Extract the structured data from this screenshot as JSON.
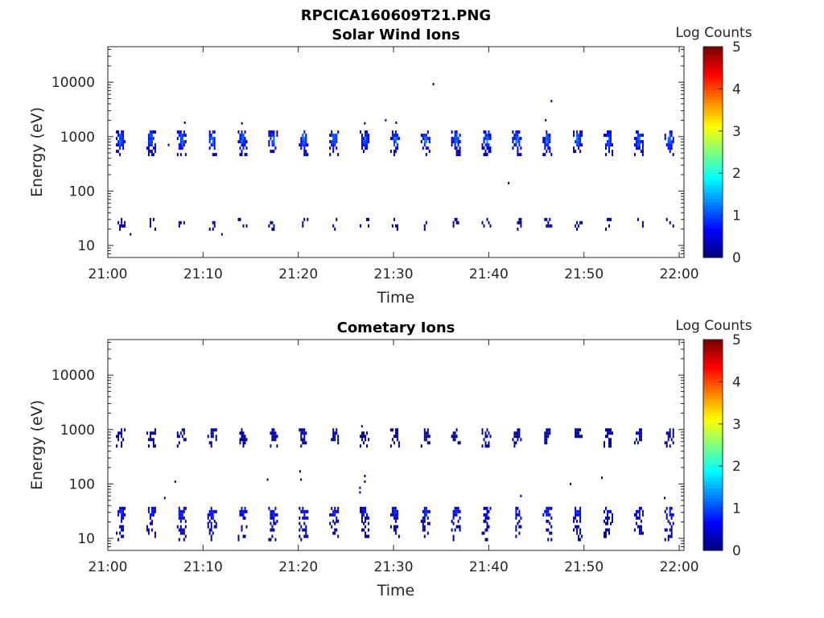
{
  "figure_title": "RPCICA160609T21.PNG",
  "chart_data": [
    {
      "type": "heatmap",
      "title": "Solar Wind Ions",
      "xlabel": "Time",
      "ylabel": "Energy (eV)",
      "x_ticks": [
        "21:00",
        "21:10",
        "21:20",
        "21:30",
        "21:40",
        "21:50",
        "22:00"
      ],
      "x_tick_minutes": [
        0,
        10,
        20,
        30,
        40,
        50,
        60
      ],
      "xlim_minutes": [
        0,
        60.5
      ],
      "y_scale": "log",
      "y_ticks": [
        "10",
        "100",
        "1000",
        "10000"
      ],
      "y_tick_values": [
        10,
        100,
        1000,
        10000
      ],
      "ylim": [
        6,
        45000
      ],
      "colorbar": {
        "label": "Log Counts",
        "ticks": [
          "0",
          "1",
          "2",
          "3",
          "4",
          "5"
        ],
        "range": [
          0,
          5
        ],
        "colormap": "jet"
      },
      "sweep_period_minutes": 3.2,
      "first_sweep_minute": 1.3,
      "sweeps": 19,
      "bands": [
        {
          "name": "main",
          "emin": 480,
          "emax": 1300,
          "peak_log_counts": 1.4,
          "fill": 0.82
        },
        {
          "name": "low",
          "emin": 19,
          "emax": 32,
          "peak_log_counts": 0.3,
          "fill": 0.35
        }
      ],
      "isolated_points": [
        {
          "t": 34.1,
          "e": 9200
        },
        {
          "t": 46.5,
          "e": 4500
        },
        {
          "t": 42.0,
          "e": 140
        },
        {
          "t": 29.1,
          "e": 2000
        },
        {
          "t": 30.2,
          "e": 1800
        },
        {
          "t": 26.9,
          "e": 1750
        },
        {
          "t": 8.0,
          "e": 1800
        },
        {
          "t": 14.0,
          "e": 1750
        },
        {
          "t": 6.3,
          "e": 700
        },
        {
          "t": 2.3,
          "e": 16
        },
        {
          "t": 11.9,
          "e": 16
        },
        {
          "t": 45.9,
          "e": 2000
        }
      ]
    },
    {
      "type": "heatmap",
      "title": "Cometary Ions",
      "xlabel": "Time",
      "ylabel": "Energy (eV)",
      "x_ticks": [
        "21:00",
        "21:10",
        "21:20",
        "21:30",
        "21:40",
        "21:50",
        "22:00"
      ],
      "x_tick_minutes": [
        0,
        10,
        20,
        30,
        40,
        50,
        60
      ],
      "xlim_minutes": [
        0,
        60.5
      ],
      "y_scale": "log",
      "y_ticks": [
        "10",
        "100",
        "1000",
        "10000"
      ],
      "y_tick_values": [
        10,
        100,
        1000,
        10000
      ],
      "ylim": [
        6,
        45000
      ],
      "colorbar": {
        "label": "Log Counts",
        "ticks": [
          "0",
          "1",
          "2",
          "3",
          "4",
          "5"
        ],
        "range": [
          0,
          5
        ],
        "colormap": "jet"
      },
      "sweep_period_minutes": 3.2,
      "first_sweep_minute": 1.3,
      "sweeps": 19,
      "bands": [
        {
          "name": "high",
          "emin": 480,
          "emax": 1050,
          "peak_log_counts": 0.2,
          "fill": 0.55
        },
        {
          "name": "low",
          "emin": 20,
          "emax": 38,
          "peak_log_counts": 0.9,
          "fill": 0.78
        },
        {
          "name": "tail",
          "emin": 9,
          "emax": 20,
          "peak_log_counts": 0.3,
          "fill": 0.4
        }
      ],
      "isolated_points": [
        {
          "t": 7.0,
          "e": 110
        },
        {
          "t": 16.7,
          "e": 120
        },
        {
          "t": 20.1,
          "e": 170
        },
        {
          "t": 20.2,
          "e": 120
        },
        {
          "t": 26.4,
          "e": 70
        },
        {
          "t": 26.4,
          "e": 85
        },
        {
          "t": 26.9,
          "e": 140
        },
        {
          "t": 26.9,
          "e": 110
        },
        {
          "t": 48.5,
          "e": 100
        },
        {
          "t": 51.8,
          "e": 130
        },
        {
          "t": 43.3,
          "e": 60
        },
        {
          "t": 5.9,
          "e": 55
        },
        {
          "t": 58.4,
          "e": 55
        },
        {
          "t": 26.6,
          "e": 1150
        }
      ]
    }
  ]
}
